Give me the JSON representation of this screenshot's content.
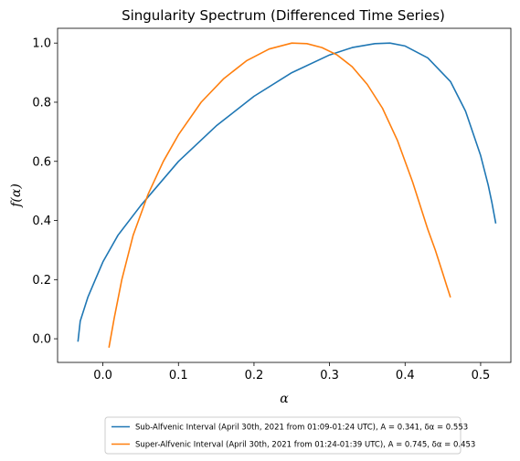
{
  "chart_data": {
    "type": "line",
    "title": "Singularity Spectrum (Differenced Time Series)",
    "xlabel": "α",
    "ylabel": "f(α)",
    "xlim": [
      -0.06,
      0.54
    ],
    "ylim": [
      -0.08,
      1.05
    ],
    "xticks": [
      0.0,
      0.1,
      0.2,
      0.3,
      0.4,
      0.5
    ],
    "xtick_labels": [
      "0.0",
      "0.1",
      "0.2",
      "0.3",
      "0.4",
      "0.5"
    ],
    "yticks": [
      0.0,
      0.2,
      0.4,
      0.6,
      0.8,
      1.0
    ],
    "ytick_labels": [
      "0.0",
      "0.2",
      "0.4",
      "0.6",
      "0.8",
      "1.0"
    ],
    "grid": false,
    "legend_position": "below",
    "series": [
      {
        "name": "Sub-Alfvenic Interval (April 30th, 2021 from 01:09-01:24 UTC), A = 0.341, δα = 0.553",
        "color": "#1f77b4",
        "x": [
          -0.033,
          -0.03,
          -0.02,
          -0.01,
          0.0,
          0.02,
          0.05,
          0.1,
          0.15,
          0.2,
          0.25,
          0.3,
          0.33,
          0.36,
          0.38,
          0.4,
          0.43,
          0.46,
          0.48,
          0.5,
          0.51,
          0.515,
          0.52
        ],
        "y": [
          -0.01,
          0.06,
          0.14,
          0.2,
          0.26,
          0.35,
          0.45,
          0.6,
          0.72,
          0.82,
          0.9,
          0.96,
          0.985,
          0.998,
          1.0,
          0.99,
          0.95,
          0.87,
          0.77,
          0.62,
          0.52,
          0.46,
          0.39
        ]
      },
      {
        "name": "Super-Alfvenic Interval (April 30th, 2021 from 01:24-01:39 UTC), A = 0.745, δα = 0.453",
        "color": "#ff7f0e",
        "x": [
          0.008,
          0.015,
          0.025,
          0.04,
          0.06,
          0.08,
          0.1,
          0.13,
          0.16,
          0.19,
          0.22,
          0.25,
          0.27,
          0.29,
          0.31,
          0.33,
          0.35,
          0.37,
          0.39,
          0.41,
          0.43,
          0.44,
          0.45,
          0.455,
          0.46
        ],
        "y": [
          -0.03,
          0.07,
          0.2,
          0.35,
          0.49,
          0.6,
          0.69,
          0.8,
          0.88,
          0.94,
          0.98,
          1.0,
          0.998,
          0.985,
          0.96,
          0.92,
          0.86,
          0.78,
          0.67,
          0.53,
          0.37,
          0.3,
          0.22,
          0.18,
          0.14
        ]
      }
    ]
  }
}
